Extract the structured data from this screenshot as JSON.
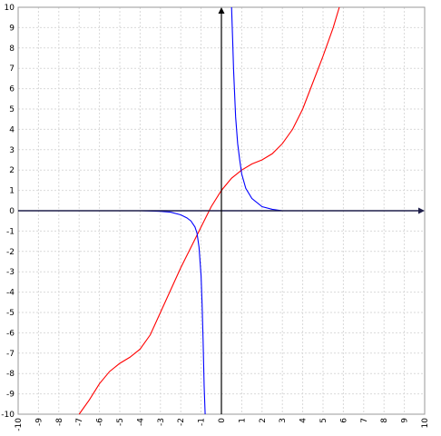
{
  "chart_data": {
    "type": "line",
    "title": "",
    "xlabel": "",
    "ylabel": "",
    "xlim": [
      -10,
      10
    ],
    "ylim": [
      -10,
      10
    ],
    "grid": true,
    "x_ticks": [
      "-10",
      "-9",
      "-8",
      "-7",
      "-6",
      "-5",
      "-4",
      "-3",
      "-2",
      "-1",
      "0",
      "1",
      "2",
      "3",
      "4",
      "5",
      "6",
      "7",
      "8",
      "9",
      "10"
    ],
    "y_ticks": [
      "-10",
      "-9",
      "-8",
      "-7",
      "-6",
      "-5",
      "-4",
      "-3",
      "-2",
      "-1",
      "0",
      "1",
      "2",
      "3",
      "4",
      "5",
      "6",
      "7",
      "8",
      "9",
      "10"
    ],
    "series": [
      {
        "color": "#ff0000",
        "x": [
          -7.0,
          -6.5,
          -6.0,
          -5.5,
          -5.0,
          -4.5,
          -4.0,
          -3.5,
          -3.0,
          -2.5,
          -2.0,
          -1.5,
          -1.0,
          -0.5,
          0.0,
          0.5,
          1.0,
          1.5,
          2.0,
          2.5,
          3.0,
          3.5,
          4.0,
          4.5,
          5.0,
          5.5,
          5.8
        ],
        "y": [
          -10.0,
          -9.3,
          -8.5,
          -7.9,
          -7.5,
          -7.2,
          -6.8,
          -6.1,
          -5.0,
          -3.9,
          -2.8,
          -1.8,
          -0.8,
          0.2,
          1.0,
          1.6,
          2.0,
          2.3,
          2.5,
          2.8,
          3.3,
          4.0,
          5.0,
          6.3,
          7.6,
          9.0,
          10.0
        ]
      },
      {
        "color": "#0000ff",
        "x": [
          -10.0,
          -8.0,
          -6.0,
          -4.0,
          -3.0,
          -2.5,
          -2.0,
          -1.7,
          -1.5,
          -1.3,
          -1.2,
          -1.1,
          -1.0,
          -0.95,
          -0.9,
          -0.85,
          -0.8
        ],
        "y": [
          0.0,
          0.0,
          0.0,
          0.0,
          -0.03,
          -0.07,
          -0.2,
          -0.35,
          -0.5,
          -0.8,
          -1.1,
          -1.8,
          -3.2,
          -4.6,
          -6.4,
          -8.6,
          -10.0
        ]
      },
      {
        "color": "#0000ff",
        "x": [
          0.5,
          0.55,
          0.6,
          0.7,
          0.8,
          0.9,
          1.0,
          1.2,
          1.5,
          2.0,
          2.5,
          3.0
        ],
        "y": [
          10.0,
          8.5,
          6.9,
          4.6,
          3.3,
          2.5,
          1.8,
          1.1,
          0.6,
          0.2,
          0.07,
          0.0
        ]
      }
    ]
  },
  "colors": {
    "axis": "#000000",
    "x_axis": "#1f1f4a",
    "grid": "#d9d9d9"
  }
}
